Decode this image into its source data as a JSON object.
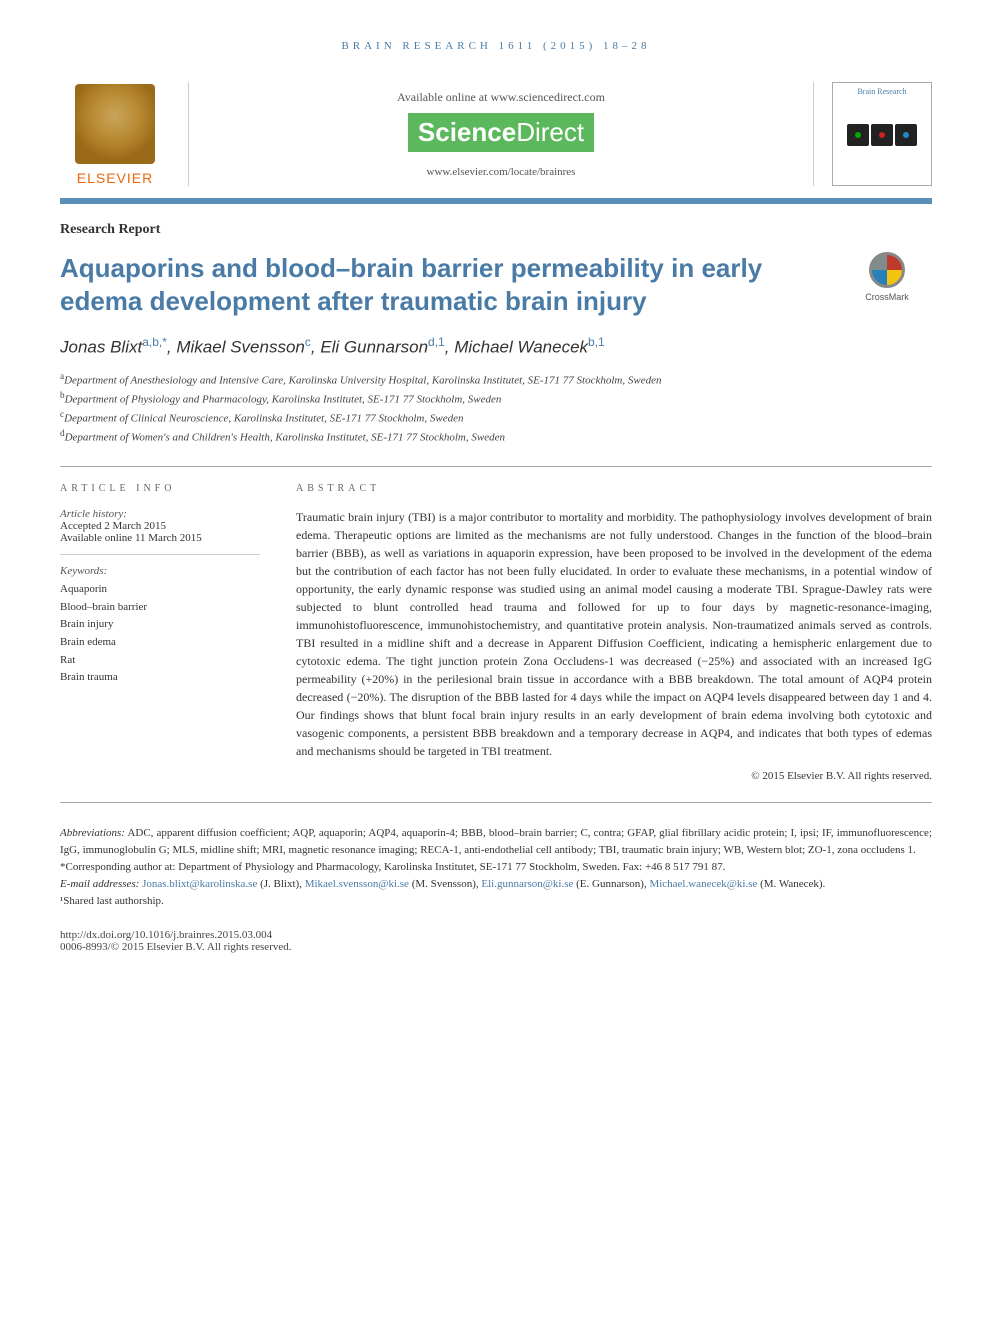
{
  "running_head": "BRAIN RESEARCH 1611 (2015) 18–28",
  "banner": {
    "available_text": "Available online at www.sciencedirect.com",
    "sd_brand_1": "Science",
    "sd_brand_2": "Direct",
    "locate_url": "www.elsevier.com/locate/brainres",
    "publisher_name": "ELSEVIER",
    "journal_cover_title": "Brain Research"
  },
  "article": {
    "type_label": "Research Report",
    "title": "Aquaporins and blood–brain barrier permeability in early edema development after traumatic brain injury",
    "crossmark_label": "CrossMark"
  },
  "authors": [
    {
      "name": "Jonas Blixt",
      "affil": "a,b,",
      "corr": "*"
    },
    {
      "name": "Mikael Svensson",
      "affil": "c",
      "corr": ""
    },
    {
      "name": "Eli Gunnarson",
      "affil": "d,1",
      "corr": ""
    },
    {
      "name": "Michael Wanecek",
      "affil": "b,1",
      "corr": ""
    }
  ],
  "affiliations": [
    {
      "key": "a",
      "text": "Department of Anesthesiology and Intensive Care, Karolinska University Hospital, Karolinska Institutet, SE-171 77 Stockholm, Sweden"
    },
    {
      "key": "b",
      "text": "Department of Physiology and Pharmacology, Karolinska Institutet, SE-171 77 Stockholm, Sweden"
    },
    {
      "key": "c",
      "text": "Department of Clinical Neuroscience, Karolinska Institutet, SE-171 77 Stockholm, Sweden"
    },
    {
      "key": "d",
      "text": "Department of Women's and Children's Health, Karolinska Institutet, SE-171 77 Stockholm, Sweden"
    }
  ],
  "info": {
    "section_label": "article info",
    "history_label": "Article history:",
    "accepted": "Accepted 2 March 2015",
    "online": "Available online 11 March 2015",
    "keywords_label": "Keywords:",
    "keywords": [
      "Aquaporin",
      "Blood–brain barrier",
      "Brain injury",
      "Brain edema",
      "Rat",
      "Brain trauma"
    ]
  },
  "abstract": {
    "section_label": "abstract",
    "text": "Traumatic brain injury (TBI) is a major contributor to mortality and morbidity. The pathophysiology involves development of brain edema. Therapeutic options are limited as the mechanisms are not fully understood. Changes in the function of the blood–brain barrier (BBB), as well as variations in aquaporin expression, have been proposed to be involved in the development of the edema but the contribution of each factor has not been fully elucidated. In order to evaluate these mechanisms, in a potential window of opportunity, the early dynamic response was studied using an animal model causing a moderate TBI. Sprague-Dawley rats were subjected to blunt controlled head trauma and followed for up to four days by magnetic-resonance-imaging, immunohistofluorescence, immunohistochemistry, and quantitative protein analysis. Non-traumatized animals served as controls. TBI resulted in a midline shift and a decrease in Apparent Diffusion Coefficient, indicating a hemispheric enlargement due to cytotoxic edema. The tight junction protein Zona Occludens-1 was decreased (−25%) and associated with an increased IgG permeability (+20%) in the perilesional brain tissue in accordance with a BBB breakdown. The total amount of AQP4 protein decreased (−20%). The disruption of the BBB lasted for 4 days while the impact on AQP4 levels disappeared between day 1 and 4. Our findings shows that blunt focal brain injury results in an early development of brain edema involving both cytotoxic and vasogenic components, a persistent BBB breakdown and a temporary decrease in AQP4, and indicates that both types of edemas and mechanisms should be targeted in TBI treatment.",
    "copyright": "© 2015 Elsevier B.V. All rights reserved."
  },
  "footnotes": {
    "abbrev_label": "Abbreviations:",
    "abbrev_text": "ADC, apparent diffusion coefficient; AQP, aquaporin; AQP4, aquaporin-4; BBB, blood–brain barrier; C, contra; GFAP, glial fibrillary acidic protein; I, ipsi; IF, immunofluorescence; IgG, immunoglobulin G; MLS, midline shift; MRI, magnetic resonance imaging; RECA-1, anti-endothelial cell antibody; TBI, traumatic brain injury; WB, Western blot; ZO-1, zona occludens 1.",
    "corr_label": "*Corresponding author at:",
    "corr_text": "Department of Physiology and Pharmacology, Karolinska Institutet, SE-171 77 Stockholm, Sweden. Fax: +46 8 517 791 87.",
    "email_label": "E-mail addresses:",
    "emails": [
      {
        "addr": "Jonas.blixt@karolinska.se",
        "who": "(J. Blixt)"
      },
      {
        "addr": "Mikael.svensson@ki.se",
        "who": "(M. Svensson)"
      },
      {
        "addr": "Eli.gunnarson@ki.se",
        "who": "(E. Gunnarson)"
      },
      {
        "addr": "Michael.wanecek@ki.se",
        "who": "(M. Wanecek)"
      }
    ],
    "shared_note": "¹Shared last authorship."
  },
  "doi": {
    "url": "http://dx.doi.org/10.1016/j.brainres.2015.03.004",
    "issn_line": "0006-8993/© 2015 Elsevier B.V. All rights reserved."
  },
  "colors": {
    "accent": "#4a7ba6",
    "rule": "#5a8fb8",
    "orange": "#ec6608",
    "text": "#333333"
  }
}
